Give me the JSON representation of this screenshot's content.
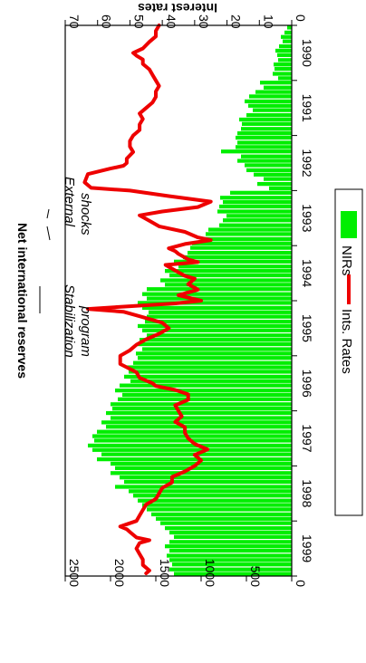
{
  "chart_data": {
    "type": "bar",
    "orientation": "rotated 90 degrees clockwise",
    "title": "",
    "ylabel": "Net international reserves",
    "y2label": "Interest rates",
    "xlabel": "",
    "x_range": [
      1990,
      2000
    ],
    "x_ticks": [
      "1990",
      "1991",
      "1992",
      "1993",
      "1994",
      "1995",
      "1996",
      "1997",
      "1998",
      "1999"
    ],
    "ylim": [
      0,
      2500
    ],
    "y_ticks": [
      "0",
      "500",
      "1000",
      "1500",
      "2000",
      "2500"
    ],
    "y2lim": [
      0,
      70
    ],
    "y2_ticks": [
      "0",
      "10",
      "20",
      "30",
      "40",
      "50",
      "60",
      "70"
    ],
    "grid": false,
    "legend_position": "bottom-right",
    "legend": {
      "nirs": "NIRs",
      "rates": "Ints. Rates"
    },
    "annotations": {
      "stabilization_line1": "Stabilization",
      "stabilization_line2": "program",
      "shocks_line1": "External",
      "shocks_line2": "shocks"
    },
    "series": [
      {
        "name": "NIRs",
        "type": "bar",
        "color": "#00ee00",
        "axis": "left",
        "x": [
          1990.04,
          1990.13,
          1990.21,
          1990.29,
          1990.38,
          1990.46,
          1990.54,
          1990.63,
          1990.71,
          1990.79,
          1990.88,
          1990.96,
          1991.04,
          1991.13,
          1991.21,
          1991.29,
          1991.38,
          1991.46,
          1991.54,
          1991.63,
          1991.71,
          1991.79,
          1991.88,
          1991.96,
          1992.04,
          1992.13,
          1992.21,
          1992.29,
          1992.38,
          1992.46,
          1992.54,
          1992.63,
          1992.71,
          1992.79,
          1992.88,
          1992.96,
          1993.04,
          1993.13,
          1993.21,
          1993.29,
          1993.38,
          1993.46,
          1993.54,
          1993.63,
          1993.71,
          1993.79,
          1993.88,
          1993.96,
          1994.04,
          1994.13,
          1994.21,
          1994.29,
          1994.38,
          1994.46,
          1994.54,
          1994.63,
          1994.71,
          1994.79,
          1994.88,
          1994.96,
          1995.04,
          1995.13,
          1995.21,
          1995.29,
          1995.38,
          1995.46,
          1995.54,
          1995.63,
          1995.71,
          1995.79,
          1995.88,
          1995.96,
          1996.04,
          1996.13,
          1996.21,
          1996.29,
          1996.38,
          1996.46,
          1996.54,
          1996.63,
          1996.71,
          1996.79,
          1996.88,
          1996.96,
          1997.04,
          1997.13,
          1997.21,
          1997.29,
          1997.38,
          1997.46,
          1997.54,
          1997.63,
          1997.71,
          1997.79,
          1997.88,
          1997.96,
          1998.04,
          1998.13,
          1998.21,
          1998.29,
          1998.38,
          1998.46,
          1998.54,
          1998.63,
          1998.71,
          1998.79,
          1998.88,
          1998.96,
          1999.04,
          1999.13,
          1999.21,
          1999.29,
          1999.38,
          1999.46,
          1999.54,
          1999.63,
          1999.71,
          1999.79,
          1999.88,
          1999.96
        ],
        "values": [
          50,
          80,
          120,
          100,
          140,
          180,
          160,
          150,
          200,
          190,
          210,
          150,
          350,
          310,
          400,
          470,
          520,
          480,
          430,
          500,
          580,
          550,
          560,
          600,
          620,
          600,
          620,
          780,
          560,
          600,
          520,
          500,
          420,
          310,
          380,
          250,
          680,
          790,
          760,
          800,
          820,
          720,
          760,
          800,
          920,
          950,
          1000,
          1100,
          1120,
          1150,
          1200,
          1300,
          1250,
          1400,
          1350,
          1450,
          1400,
          1600,
          1650,
          1600,
          1700,
          1650,
          1580,
          1600,
          1620,
          1700,
          1650,
          1600,
          1680,
          1700,
          1650,
          1720,
          1700,
          1750,
          1820,
          1800,
          1850,
          1780,
          1900,
          1950,
          1870,
          1920,
          2000,
          1980,
          2050,
          2000,
          2100,
          2050,
          2150,
          2200,
          2180,
          2250,
          2200,
          2100,
          2150,
          2000,
          1950,
          2000,
          1900,
          1850,
          1950,
          1800,
          1750,
          1700,
          1650,
          1600,
          1550,
          1500,
          1450,
          1400,
          1350,
          1300,
          1350,
          1400,
          1350,
          1380,
          1350,
          1320,
          1350,
          1300
        ]
      },
      {
        "name": "Ints. Rates",
        "type": "line",
        "color": "#ee0000",
        "axis": "right",
        "x": [
          1990.0,
          1990.1,
          1990.2,
          1990.3,
          1990.42,
          1990.5,
          1990.55,
          1990.62,
          1990.7,
          1990.8,
          1990.9,
          1991.0,
          1991.1,
          1991.2,
          1991.3,
          1991.4,
          1991.5,
          1991.6,
          1991.7,
          1991.8,
          1991.9,
          1992.0,
          1992.1,
          1992.2,
          1992.3,
          1992.42,
          1992.5,
          1992.55,
          1992.6,
          1992.7,
          1992.85,
          1992.95,
          1993.0,
          1993.1,
          1993.2,
          1993.3,
          1993.38,
          1993.45,
          1993.55,
          1993.65,
          1993.75,
          1993.85,
          1993.9,
          1993.97,
          1994.05,
          1994.1,
          1994.15,
          1994.25,
          1994.3,
          1994.35,
          1994.45,
          1994.55,
          1994.6,
          1994.7,
          1994.8,
          1994.9,
          1995.0,
          1995.05,
          1995.1,
          1995.15,
          1995.2,
          1995.3,
          1995.4,
          1995.5,
          1995.6,
          1995.7,
          1995.8,
          1995.9,
          1996.0,
          1996.15,
          1996.3,
          1996.4,
          1996.5,
          1996.55,
          1996.62,
          1996.7,
          1996.8,
          1996.9,
          1997.0,
          1997.1,
          1997.2,
          1997.3,
          1997.4,
          1997.5,
          1997.6,
          1997.7,
          1997.8,
          1997.9,
          1998.0,
          1998.1,
          1998.2,
          1998.3,
          1998.4,
          1998.5,
          1998.6,
          1998.7,
          1998.8,
          1998.9,
          1999.0,
          1999.1,
          1999.15,
          1999.2,
          1999.3,
          1999.35,
          1999.4,
          1999.5,
          1999.6,
          1999.7,
          1999.8,
          1999.9,
          1999.95
        ],
        "values": [
          41,
          42,
          42,
          44,
          46,
          49,
          48,
          46,
          46,
          44,
          43,
          42,
          41,
          42,
          42,
          43,
          45,
          47,
          46,
          47,
          47,
          49,
          50,
          50,
          49,
          51,
          51,
          52,
          56,
          63,
          64,
          62,
          50,
          38,
          25,
          29,
          40,
          47,
          44,
          41,
          33,
          29,
          25,
          33,
          38,
          36,
          35,
          32,
          29,
          39,
          36,
          33,
          30,
          32,
          29,
          35,
          28,
          36,
          50,
          63,
          52,
          46,
          40,
          38,
          41,
          45,
          48,
          50,
          53,
          53,
          48,
          47,
          43,
          42,
          36,
          32,
          32,
          36,
          35,
          34,
          36,
          33,
          33,
          32,
          30,
          26,
          30,
          28,
          30,
          33,
          37,
          37,
          40,
          41,
          42,
          45,
          46,
          47,
          48,
          53,
          51,
          50,
          48,
          44,
          47,
          48,
          47,
          46,
          46,
          44,
          45
        ]
      }
    ]
  }
}
